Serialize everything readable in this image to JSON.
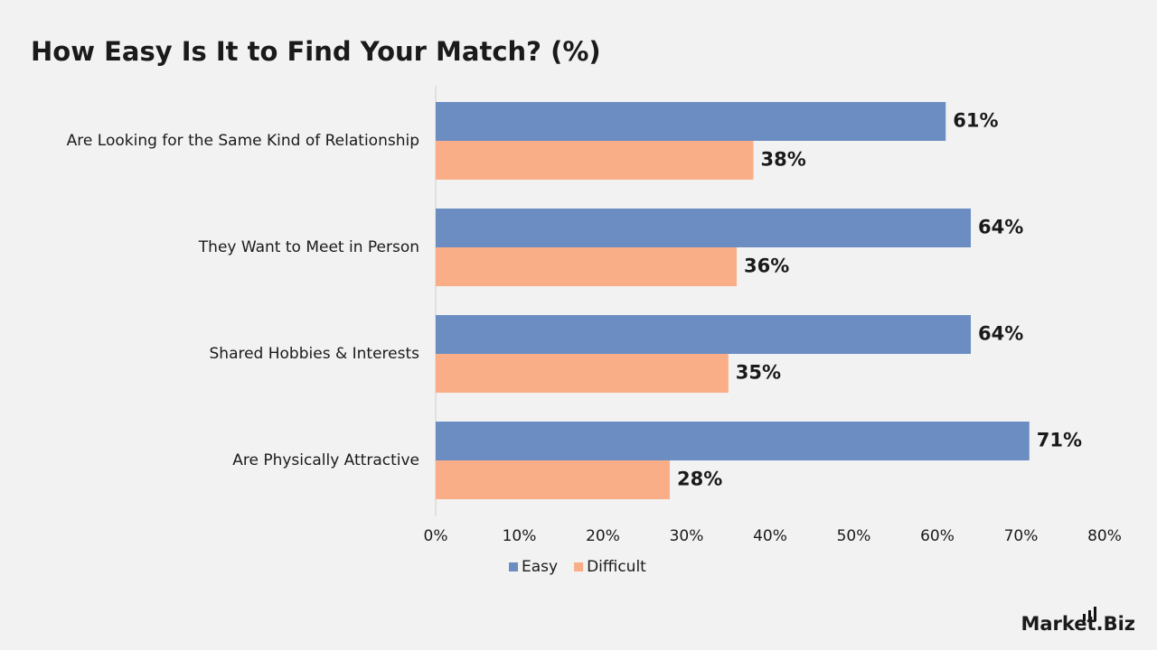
{
  "chart_data": {
    "type": "hbar",
    "title": "How Easy Is It to Find Your Match? (%)",
    "categories": [
      "Are Looking for the Same Kind of Relationship",
      "They Want to Meet in Person",
      "Shared Hobbies & Interests",
      "Are Physically Attractive"
    ],
    "series": [
      {
        "name": "Easy",
        "color": "#6b8dc2",
        "values": [
          61,
          64,
          64,
          71
        ],
        "value_labels": [
          "61%",
          "64%",
          "64%",
          "71%"
        ]
      },
      {
        "name": "Difficult",
        "color": "#f9ae88",
        "values": [
          38,
          36,
          35,
          28
        ],
        "value_labels": [
          "38%",
          "36%",
          "35%",
          "28%"
        ]
      }
    ],
    "xlim": [
      0,
      80
    ],
    "xticks": [
      {
        "value": 0,
        "label": "0%"
      },
      {
        "value": 10,
        "label": "10%"
      },
      {
        "value": 20,
        "label": "20%"
      },
      {
        "value": 30,
        "label": "30%"
      },
      {
        "value": 40,
        "label": "40%"
      },
      {
        "value": 50,
        "label": "50%"
      },
      {
        "value": 60,
        "label": "60%"
      },
      {
        "value": 70,
        "label": "70%"
      },
      {
        "value": 80,
        "label": "80%"
      }
    ],
    "grid": false,
    "legend": "bottom",
    "logo": "Market.Biz"
  }
}
